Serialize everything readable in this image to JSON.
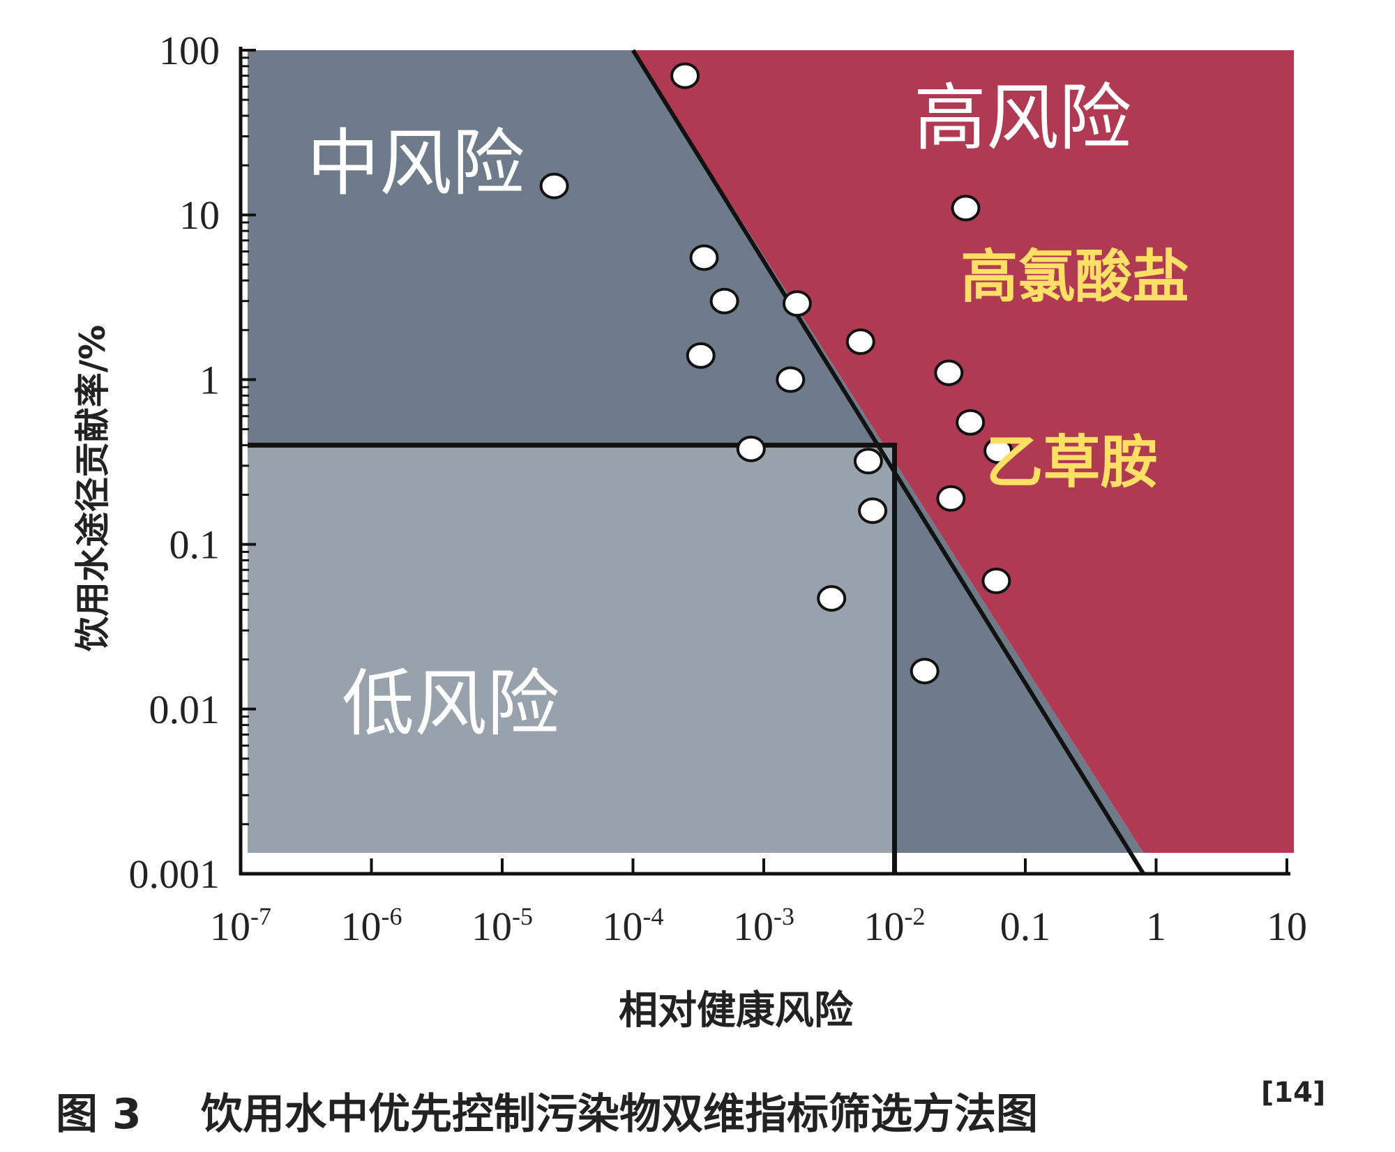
{
  "chart_data": {
    "type": "scatter",
    "xscale": "log",
    "yscale": "log",
    "xlim": [
      1e-07,
      10
    ],
    "ylim": [
      0.001,
      100
    ],
    "xlabel": "相对健康风险",
    "ylabel": "饮用水途径贡献率/%",
    "x_ticks": [
      {
        "value": 1e-07,
        "base": "10",
        "exp": "-7"
      },
      {
        "value": 1e-06,
        "base": "10",
        "exp": "-6"
      },
      {
        "value": 1e-05,
        "base": "10",
        "exp": "-5"
      },
      {
        "value": 0.0001,
        "base": "10",
        "exp": "-4"
      },
      {
        "value": 0.001,
        "base": "10",
        "exp": "-3"
      },
      {
        "value": 0.01,
        "base": "10",
        "exp": "-2"
      },
      {
        "value": 0.1,
        "base": "0.1",
        "exp": ""
      },
      {
        "value": 1,
        "base": "1",
        "exp": ""
      },
      {
        "value": 10,
        "base": "10",
        "exp": ""
      }
    ],
    "y_ticks": [
      {
        "value": 100,
        "label": "100"
      },
      {
        "value": 10,
        "label": "10"
      },
      {
        "value": 1,
        "label": "1"
      },
      {
        "value": 0.1,
        "label": "0.1"
      },
      {
        "value": 0.01,
        "label": "0.01"
      },
      {
        "value": 0.001,
        "label": "0.001"
      }
    ],
    "zones": [
      {
        "label": "高风险",
        "color": "#b03a52",
        "label_color": "#ffffff"
      },
      {
        "label": "中风险",
        "color": "#6e7b8b",
        "label_color": "#ffffff"
      },
      {
        "label": "低风险",
        "color": "#98a2ad",
        "label_color": "#ffffff"
      }
    ],
    "low_risk_box": {
      "x_max": 0.01,
      "y_max": 0.4
    },
    "boundary_line": {
      "x1": 0.0001,
      "y1": 100,
      "x2": 0.8,
      "y2": 0.001
    },
    "points": [
      {
        "x": 0.00025,
        "y": 70
      },
      {
        "x": 2.5e-05,
        "y": 15
      },
      {
        "x": 0.035,
        "y": 11
      },
      {
        "x": 0.00035,
        "y": 5.5
      },
      {
        "x": 0.0005,
        "y": 3
      },
      {
        "x": 0.0018,
        "y": 2.9
      },
      {
        "x": 0.0055,
        "y": 1.7
      },
      {
        "x": 0.00033,
        "y": 1.4
      },
      {
        "x": 0.0016,
        "y": 1.0
      },
      {
        "x": 0.026,
        "y": 1.1
      },
      {
        "x": 0.038,
        "y": 0.55
      },
      {
        "x": 0.062,
        "y": 0.37
      },
      {
        "x": 0.0008,
        "y": 0.38
      },
      {
        "x": 0.0063,
        "y": 0.32
      },
      {
        "x": 0.0068,
        "y": 0.16
      },
      {
        "x": 0.027,
        "y": 0.19
      },
      {
        "x": 0.06,
        "y": 0.06
      },
      {
        "x": 0.0033,
        "y": 0.047
      },
      {
        "x": 0.017,
        "y": 0.017
      }
    ],
    "annotations": [
      {
        "text": "高氯酸盐",
        "x": 0.032,
        "y": 3.2
      },
      {
        "text": "乙草胺",
        "x": 0.05,
        "y": 0.24
      }
    ]
  },
  "caption": {
    "fig_label": "图 3",
    "text": "饮用水中优先控制污染物双维指标筛选方法图",
    "ref": "[14]"
  },
  "colors": {
    "axis": "#111111",
    "point_fill": "#ffffff",
    "point_stroke": "#111111"
  }
}
